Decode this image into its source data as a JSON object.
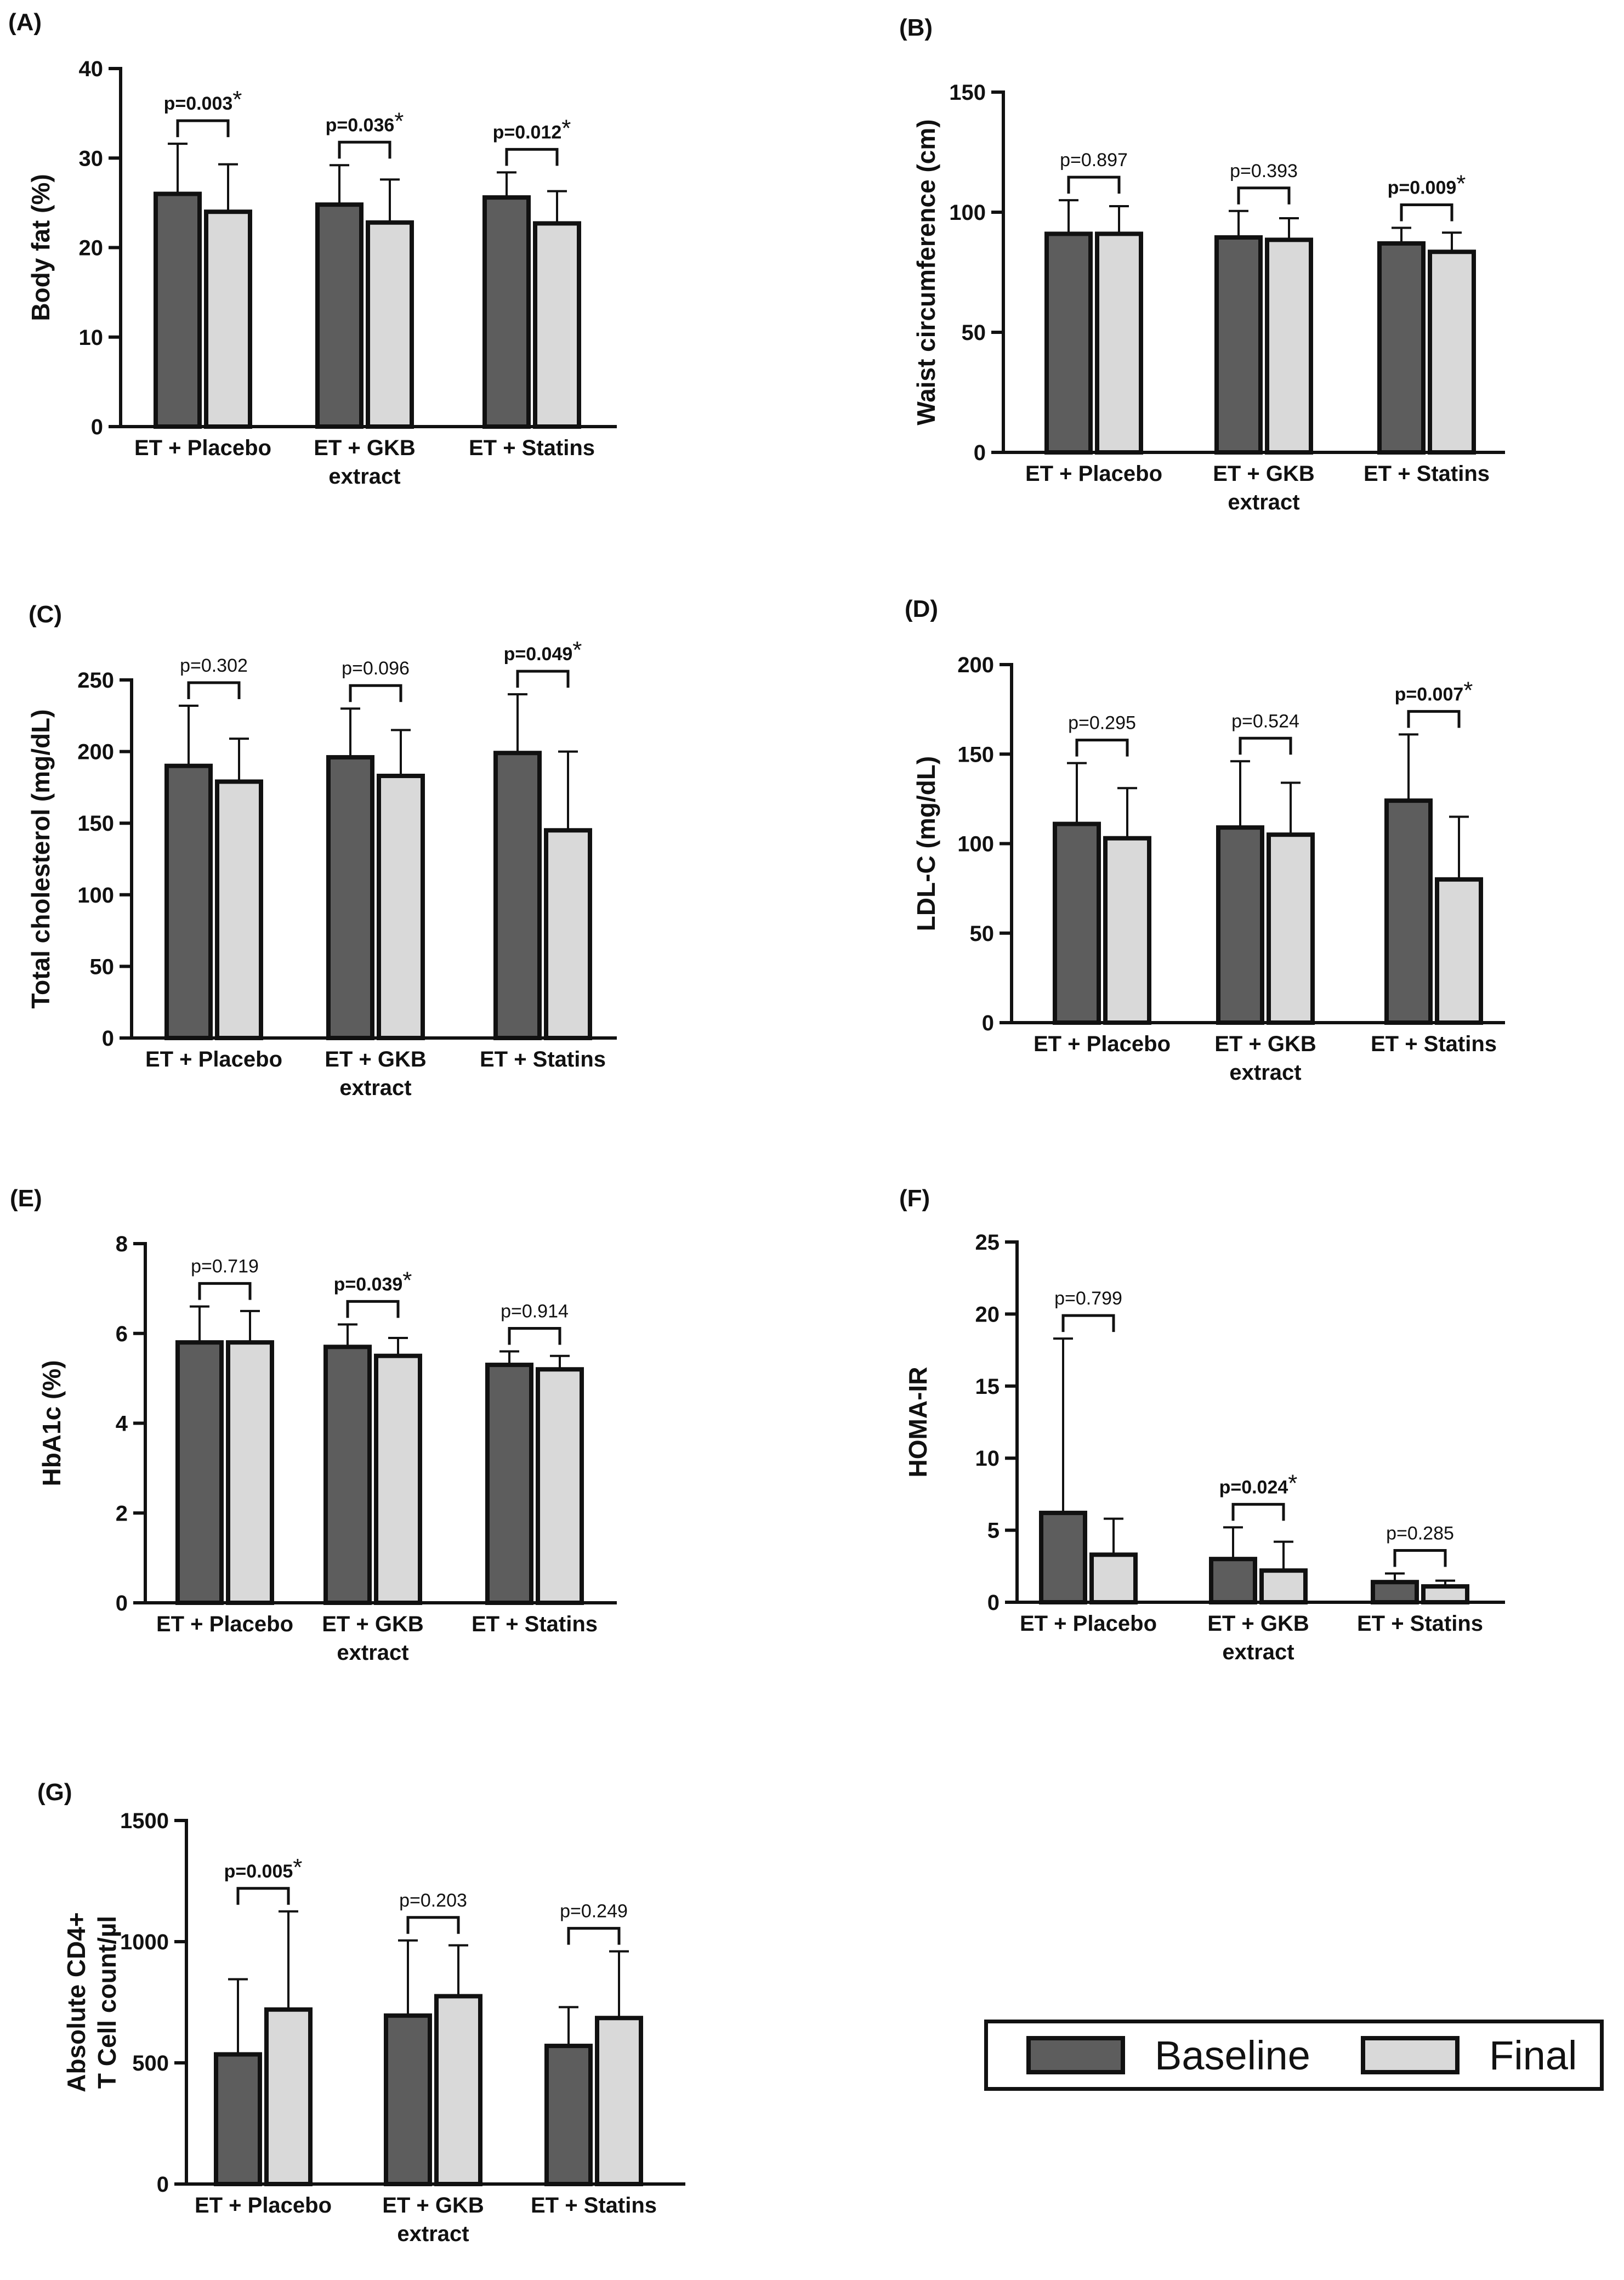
{
  "legend": {
    "baseline_label": "Baseline",
    "final_label": "Final"
  },
  "colors": {
    "baseline": "#5d5d5d",
    "final": "#d9d9d9",
    "stroke": "#111111"
  },
  "chart_data": [
    {
      "panel_label": "(A)",
      "type": "bar",
      "ylabel": "Body fat (%)",
      "ylim": [
        0,
        40
      ],
      "yticks": [
        0,
        10,
        20,
        30,
        40
      ],
      "categories": [
        [
          "ET + Placebo"
        ],
        [
          "ET + GKB",
          "extract"
        ],
        [
          "ET + Statins"
        ]
      ],
      "series": [
        {
          "name": "Baseline",
          "values": [
            26,
            24.8,
            25.6
          ],
          "errors": [
            5.6,
            4.4,
            2.8
          ]
        },
        {
          "name": "Final",
          "values": [
            24,
            22.8,
            22.7
          ],
          "errors": [
            5.3,
            4.8,
            3.6
          ]
        }
      ],
      "pvalues": [
        {
          "text": "p=0.003",
          "significant": true
        },
        {
          "text": "p=0.036",
          "significant": true
        },
        {
          "text": "p=0.012",
          "significant": true
        }
      ]
    },
    {
      "panel_label": "(B)",
      "type": "bar",
      "ylabel": "Waist circumference (cm)",
      "ylim": [
        0,
        150
      ],
      "yticks": [
        0,
        50,
        100,
        150
      ],
      "categories": [
        [
          "ET + Placebo"
        ],
        [
          "ET + GKB",
          "extract"
        ],
        [
          "ET + Statins"
        ]
      ],
      "series": [
        {
          "name": "Baseline",
          "values": [
            91,
            89.5,
            87
          ],
          "errors": [
            14,
            11,
            6.5
          ]
        },
        {
          "name": "Final",
          "values": [
            91,
            88.5,
            83.5
          ],
          "errors": [
            11.5,
            9,
            8
          ]
        }
      ],
      "pvalues": [
        {
          "text": "p=0.897",
          "significant": false
        },
        {
          "text": "p=0.393",
          "significant": false
        },
        {
          "text": "p=0.009",
          "significant": true
        }
      ]
    },
    {
      "panel_label": "(C)",
      "type": "bar",
      "ylabel": "Total cholesterol (mg/dL)",
      "ylim": [
        0,
        250
      ],
      "yticks": [
        0,
        50,
        100,
        150,
        200,
        250
      ],
      "categories": [
        [
          "ET + Placebo"
        ],
        [
          "ET + GKB",
          "extract"
        ],
        [
          "ET + Statins"
        ]
      ],
      "series": [
        {
          "name": "Baseline",
          "values": [
            190,
            196,
            199
          ],
          "errors": [
            42,
            34,
            41
          ]
        },
        {
          "name": "Final",
          "values": [
            179,
            183,
            145
          ],
          "errors": [
            30,
            32,
            55
          ]
        }
      ],
      "pvalues": [
        {
          "text": "p=0.302",
          "significant": false
        },
        {
          "text": "p=0.096",
          "significant": false
        },
        {
          "text": "p=0.049",
          "significant": true
        }
      ]
    },
    {
      "panel_label": "(D)",
      "type": "bar",
      "ylabel": "LDL-C (mg/dL)",
      "ylim": [
        0,
        200
      ],
      "yticks": [
        0,
        50,
        100,
        150,
        200
      ],
      "categories": [
        [
          "ET + Placebo"
        ],
        [
          "ET + GKB",
          "extract"
        ],
        [
          "ET + Statins"
        ]
      ],
      "series": [
        {
          "name": "Baseline",
          "values": [
            111,
            109,
            124
          ],
          "errors": [
            34,
            37,
            37
          ]
        },
        {
          "name": "Final",
          "values": [
            103,
            105,
            80
          ],
          "errors": [
            28,
            29,
            35
          ]
        }
      ],
      "pvalues": [
        {
          "text": "p=0.295",
          "significant": false
        },
        {
          "text": "p=0.524",
          "significant": false
        },
        {
          "text": "p=0.007",
          "significant": true
        }
      ]
    },
    {
      "panel_label": "(E)",
      "type": "bar",
      "ylabel": "HbA1c (%)",
      "ylim": [
        0,
        8
      ],
      "yticks": [
        0,
        2,
        4,
        6,
        8
      ],
      "categories": [
        [
          "ET + Placebo"
        ],
        [
          "ET + GKB",
          "extract"
        ],
        [
          "ET + Statins"
        ]
      ],
      "series": [
        {
          "name": "Baseline",
          "values": [
            5.8,
            5.7,
            5.3
          ],
          "errors": [
            0.8,
            0.5,
            0.3
          ]
        },
        {
          "name": "Final",
          "values": [
            5.8,
            5.5,
            5.2
          ],
          "errors": [
            0.7,
            0.4,
            0.3
          ]
        }
      ],
      "pvalues": [
        {
          "text": "p=0.719",
          "significant": false
        },
        {
          "text": "p=0.039",
          "significant": true
        },
        {
          "text": "p=0.914",
          "significant": false
        }
      ]
    },
    {
      "panel_label": "(F)",
      "type": "bar",
      "ylabel": "HOMA-IR",
      "ylim": [
        0,
        25
      ],
      "yticks": [
        0,
        5,
        10,
        15,
        20,
        25
      ],
      "categories": [
        [
          "ET + Placebo"
        ],
        [
          "ET + GKB",
          "extract"
        ],
        [
          "ET + Statins"
        ]
      ],
      "series": [
        {
          "name": "Baseline",
          "values": [
            6.2,
            3,
            1.4
          ],
          "errors": [
            12.1,
            2.2,
            0.6
          ]
        },
        {
          "name": "Final",
          "values": [
            3.3,
            2.2,
            1.1
          ],
          "errors": [
            2.5,
            2,
            0.4
          ]
        }
      ],
      "pvalues": [
        {
          "text": "p=0.799",
          "significant": false
        },
        {
          "text": "p=0.024",
          "significant": true
        },
        {
          "text": "p=0.285",
          "significant": false
        }
      ]
    },
    {
      "panel_label": "(G)",
      "type": "bar",
      "ylabel": [
        "Absolute CD4+",
        "T Cell count/µl"
      ],
      "ylim": [
        0,
        1500
      ],
      "yticks": [
        0,
        500,
        1000,
        1500
      ],
      "categories": [
        [
          "ET + Placebo"
        ],
        [
          "ET + GKB",
          "extract"
        ],
        [
          "ET + Statins"
        ]
      ],
      "series": [
        {
          "name": "Baseline",
          "values": [
            535,
            695,
            570
          ],
          "errors": [
            310,
            310,
            160
          ]
        },
        {
          "name": "Final",
          "values": [
            720,
            775,
            685
          ],
          "errors": [
            405,
            210,
            275
          ]
        }
      ],
      "pvalues": [
        {
          "text": "p=0.005",
          "significant": true
        },
        {
          "text": "p=0.203",
          "significant": false
        },
        {
          "text": "p=0.249",
          "significant": false
        }
      ]
    }
  ]
}
